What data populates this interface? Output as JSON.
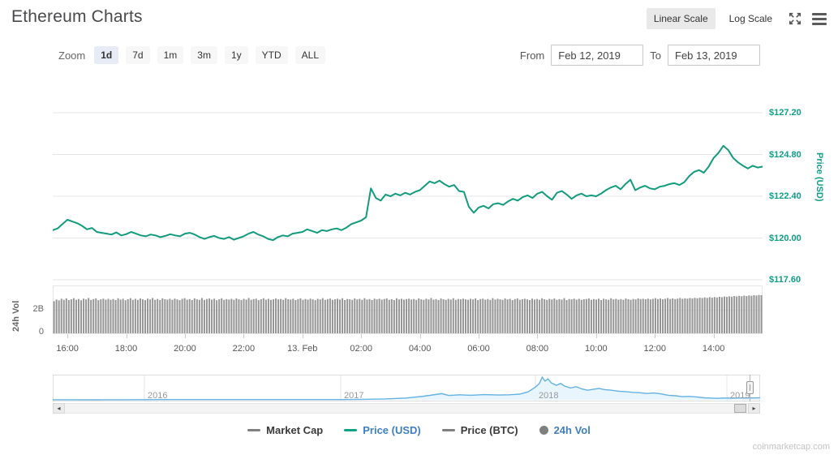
{
  "header": {
    "title": "Ethereum Charts",
    "linear_scale_label": "Linear Scale",
    "log_scale_label": "Log Scale"
  },
  "toolbar": {
    "zoom_label": "Zoom",
    "ranges": [
      {
        "label": "1d",
        "active": true
      },
      {
        "label": "7d",
        "active": false
      },
      {
        "label": "1m",
        "active": false
      },
      {
        "label": "3m",
        "active": false
      },
      {
        "label": "1y",
        "active": false
      },
      {
        "label": "YTD",
        "active": false
      },
      {
        "label": "ALL",
        "active": false
      }
    ],
    "from_label": "From",
    "from_value": "Feb 12, 2019",
    "to_label": "To",
    "to_value": "Feb 13, 2019"
  },
  "colors": {
    "price_line": "#129b7d",
    "price_axis_text": "#0f9e86",
    "grid_line": "#e6e6e6",
    "volume_bar": "#8a8a8a",
    "navigator_line": "#63b2e2",
    "navigator_fill": "#e9f5fc",
    "legend_active_text": "#3e7fc1",
    "legend_inactive_text": "#3a3a3a",
    "legend_gray_marker": "#7f7f7f"
  },
  "chart_data": [
    {
      "type": "line",
      "name": "Price (USD)",
      "title": "",
      "ylabel": "Price (USD)",
      "x_start": "Feb 12, 2019 15:30",
      "x_end": "Feb 13, 2019 15:40",
      "interval_minutes": 10,
      "xticks": [
        "16:00",
        "18:00",
        "20:00",
        "22:00",
        "13. Feb",
        "02:00",
        "04:00",
        "06:00",
        "08:00",
        "10:00",
        "12:00",
        "14:00"
      ],
      "yticks": [
        {
          "label": "$127.20",
          "value": 127.2
        },
        {
          "label": "$124.80",
          "value": 124.8
        },
        {
          "label": "$122.40",
          "value": 122.4
        },
        {
          "label": "$120.00",
          "value": 120.0
        },
        {
          "label": "$117.60",
          "value": 117.6
        }
      ],
      "ylim": [
        117.6,
        129.6
      ],
      "values": [
        120.45,
        120.55,
        120.8,
        121.05,
        120.95,
        120.85,
        120.7,
        120.5,
        120.58,
        120.35,
        120.3,
        120.25,
        120.2,
        120.32,
        120.15,
        120.22,
        120.35,
        120.25,
        120.15,
        120.1,
        120.2,
        120.15,
        120.05,
        120.12,
        120.22,
        120.15,
        120.1,
        120.25,
        120.3,
        120.2,
        120.05,
        119.95,
        120.05,
        120.12,
        120.0,
        119.95,
        120.05,
        119.9,
        120.0,
        120.1,
        120.25,
        120.35,
        120.2,
        120.1,
        119.95,
        119.88,
        120.05,
        120.15,
        120.1,
        120.25,
        120.3,
        120.35,
        120.5,
        120.4,
        120.3,
        120.45,
        120.4,
        120.5,
        120.55,
        120.45,
        120.6,
        120.8,
        120.9,
        121.0,
        121.2,
        122.85,
        122.3,
        122.15,
        122.5,
        122.4,
        122.55,
        122.45,
        122.6,
        122.5,
        122.65,
        122.75,
        123.0,
        123.25,
        123.15,
        123.3,
        123.1,
        122.95,
        123.05,
        122.7,
        122.65,
        121.8,
        121.45,
        121.75,
        121.85,
        121.7,
        121.95,
        122.0,
        121.9,
        122.1,
        122.25,
        122.15,
        122.35,
        122.45,
        122.3,
        122.55,
        122.65,
        122.4,
        122.2,
        122.6,
        122.7,
        122.5,
        122.25,
        122.45,
        122.55,
        122.4,
        122.45,
        122.4,
        122.55,
        122.75,
        122.9,
        123.0,
        122.8,
        123.1,
        123.35,
        122.75,
        122.9,
        123.0,
        122.85,
        122.8,
        122.95,
        123.0,
        123.1,
        123.15,
        123.05,
        123.2,
        123.55,
        123.8,
        123.9,
        123.75,
        124.1,
        124.6,
        124.9,
        125.3,
        125.05,
        124.6,
        124.35,
        124.15,
        124.0,
        124.15,
        124.05,
        124.1
      ]
    },
    {
      "type": "bar",
      "name": "24h Vol",
      "ylabel": "24h Vol",
      "unit": "billions USD",
      "yticks": [
        {
          "label": "2B",
          "value": 2.0
        },
        {
          "label": "0",
          "value": 0.0
        }
      ],
      "values": [
        2.78,
        2.92,
        2.85,
        2.99,
        2.9,
        3.02,
        2.88,
        2.95,
        3.04,
        2.9,
        2.97,
        2.86,
        3.0,
        2.93,
        3.05,
        2.89,
        2.96,
        3.02,
        2.87,
        2.94,
        3.0,
        2.91,
        2.98,
        2.9,
        2.96,
        2.88,
        3.03,
        2.92,
        2.99,
        2.86,
        2.95,
        3.04,
        2.9,
        2.98,
        2.89,
        3.01,
        2.94,
        2.87,
        3.0,
        2.93,
        3.05,
        2.9,
        2.97,
        2.88,
        3.02,
        2.95,
        2.91,
        2.99,
        2.9,
        3.0,
        2.93,
        2.87,
        2.98,
        3.04,
        2.91,
        2.96,
        2.88,
        3.02,
        2.94,
        2.9,
        3.05,
        2.89,
        2.97,
        3.01,
        2.92,
        2.99,
        2.86,
        2.95,
        3.03,
        2.9,
        2.96,
        2.92,
        2.98,
        2.9,
        3.02,
        2.94,
        2.88,
        2.99,
        2.92,
        3.05,
        2.9,
        2.96,
        3.0,
        2.87,
        2.95,
        3.03,
        2.91,
        2.98,
        2.89,
        2.94,
        3.01,
        2.93,
        2.97,
        2.9,
        3.04,
        2.95,
        2.92,
        2.99,
        2.88,
        2.96,
        3.02,
        2.9,
        2.97,
        2.91,
        3.0,
        2.94,
        2.87,
        2.98,
        2.93,
        3.04,
        2.89,
        2.96,
        3.01,
        2.9,
        2.95,
        2.99,
        2.92,
        3.03,
        2.88,
        2.97,
        2.95,
        2.89,
        3.01,
        2.93,
        2.98,
        2.9,
        3.04,
        2.92,
        2.96,
        2.88,
        3.0,
        2.94,
        2.99,
        2.91,
        2.97,
        3.02,
        2.9,
        2.95,
        2.88,
        3.03,
        2.93,
        2.98,
        2.91,
        2.96,
        3.0,
        2.92,
        2.97,
        2.89,
        3.02,
        2.94,
        2.9,
        2.99,
        2.93,
        3.05,
        2.91,
        2.96,
        2.88,
        3.01,
        2.95,
        2.9,
        2.98,
        2.92,
        3.03,
        2.89,
        2.97,
        2.94,
        3.0,
        2.93,
        2.9,
        2.98,
        2.93,
        3.02,
        2.88,
        2.96,
        3.0,
        2.91,
        2.97,
        2.89,
        3.04,
        2.92,
        2.99,
        2.94,
        2.9,
        3.01,
        2.93,
        2.98,
        2.87,
        2.96,
        3.02,
        2.9,
        2.95,
        2.99,
        2.94,
        2.88,
        3.0,
        2.92,
        2.97,
        2.9,
        3.03,
        2.95,
        2.89,
        2.98,
        2.93,
        3.01,
        2.9,
        2.96,
        2.92,
        3.04,
        2.88,
        2.97,
        2.94,
        3.0,
        2.91,
        2.98,
        2.9,
        2.95,
        2.97,
        3.02,
        2.9,
        2.96,
        2.92,
        3.0,
        2.88,
        2.99,
        2.94,
        2.9,
        3.03,
        2.93,
        2.98,
        2.91,
        2.96,
        2.9,
        3.01,
        2.95,
        2.89,
        2.97,
        2.93,
        3.02,
        2.96,
        2.99,
        2.95,
        3.0,
        2.93,
        2.98,
        3.04,
        2.96,
        3.01,
        2.94,
        2.99,
        3.05,
        2.97,
        3.02,
        2.96,
        3.0,
        3.06,
        2.98,
        3.03,
        3.0,
        3.05,
        3.01,
        3.07,
        3.03,
        3.08,
        3.05,
        3.1,
        3.06,
        3.12,
        3.08,
        3.14,
        3.1,
        3.16,
        3.12,
        3.18,
        3.15,
        3.2,
        3.17,
        3.22,
        3.19,
        3.24,
        3.21,
        3.26,
        3.23,
        3.28,
        3.25,
        3.3,
        3.27,
        3.32,
        3.3
      ]
    },
    {
      "type": "area",
      "name": "navigator",
      "x_labels": [
        "2016",
        "2017",
        "2018",
        "2019"
      ],
      "ylim_usd": [
        0,
        1400
      ],
      "points": [
        [
          0.0,
          3
        ],
        [
          0.03,
          3
        ],
        [
          0.06,
          2
        ],
        [
          0.09,
          6
        ],
        [
          0.13,
          11
        ],
        [
          0.17,
          13
        ],
        [
          0.21,
          14
        ],
        [
          0.25,
          15
        ],
        [
          0.29,
          13
        ],
        [
          0.33,
          17
        ],
        [
          0.37,
          14
        ],
        [
          0.41,
          17
        ],
        [
          0.44,
          28
        ],
        [
          0.47,
          56
        ],
        [
          0.5,
          112
        ],
        [
          0.525,
          224
        ],
        [
          0.55,
          378
        ],
        [
          0.56,
          266
        ],
        [
          0.575,
          308
        ],
        [
          0.59,
          280
        ],
        [
          0.61,
          322
        ],
        [
          0.63,
          294
        ],
        [
          0.645,
          308
        ],
        [
          0.66,
          350
        ],
        [
          0.672,
          490
        ],
        [
          0.682,
          770
        ],
        [
          0.688,
          1008
        ],
        [
          0.692,
          1400
        ],
        [
          0.696,
          1148
        ],
        [
          0.7,
          1288
        ],
        [
          0.705,
          1036
        ],
        [
          0.712,
          896
        ],
        [
          0.718,
          1008
        ],
        [
          0.724,
          840
        ],
        [
          0.732,
          728
        ],
        [
          0.74,
          812
        ],
        [
          0.748,
          672
        ],
        [
          0.756,
          588
        ],
        [
          0.764,
          644
        ],
        [
          0.772,
          700
        ],
        [
          0.78,
          630
        ],
        [
          0.79,
          588
        ],
        [
          0.8,
          532
        ],
        [
          0.81,
          504
        ],
        [
          0.82,
          462
        ],
        [
          0.83,
          434
        ],
        [
          0.84,
          392
        ],
        [
          0.85,
          420
        ],
        [
          0.86,
          364
        ],
        [
          0.87,
          280
        ],
        [
          0.88,
          252
        ],
        [
          0.89,
          196
        ],
        [
          0.9,
          210
        ],
        [
          0.91,
          182
        ],
        [
          0.92,
          126
        ],
        [
          0.93,
          105
        ],
        [
          0.94,
          91
        ],
        [
          0.95,
          112
        ],
        [
          0.96,
          101
        ],
        [
          0.97,
          109
        ],
        [
          0.98,
          112
        ],
        [
          0.99,
          115
        ],
        [
          1.0,
          119
        ]
      ]
    }
  ],
  "legend": {
    "items": [
      {
        "label": "Market Cap",
        "marker": "dash",
        "marker_color": "#7f7f7f",
        "text_color": "#3a3a3a",
        "active": false
      },
      {
        "label": "Price (USD)",
        "marker": "dash",
        "marker_color": "#12a184",
        "text_color": "#3e7fc1",
        "active": true
      },
      {
        "label": "Price (BTC)",
        "marker": "dash",
        "marker_color": "#7f7f7f",
        "text_color": "#3a3a3a",
        "active": false
      },
      {
        "label": "24h Vol",
        "marker": "circle",
        "marker_color": "#7f7f7f",
        "text_color": "#3e7fc1",
        "active": true
      }
    ]
  },
  "watermark": "coinmarketcap.com"
}
